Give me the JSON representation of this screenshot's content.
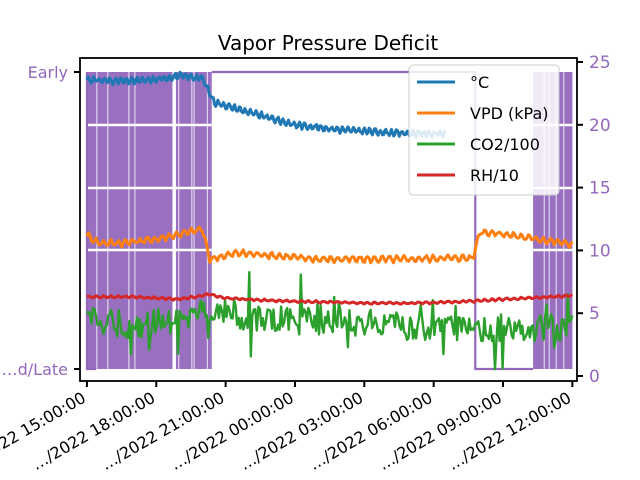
{
  "chart_data": {
    "type": "line",
    "title": "Vapor Pressure Deficit",
    "xlabel": "",
    "ylabel": "",
    "x_ticks": [
      "…2022 15:00:00",
      "…/2022 18:00:00",
      "…/2022 21:00:00",
      "…/2022 00:00:00",
      "…/2022 03:00:00",
      "…/2022 06:00:00",
      "…/2022 09:00:00",
      "…/2022 12:00:00"
    ],
    "x_range_hours": [
      14.7,
      12.2
    ],
    "y_right": {
      "ticks": [
        "0",
        "5",
        "10",
        "15",
        "20",
        "25"
      ],
      "ylim": [
        0,
        25
      ]
    },
    "y_left": {
      "ticks": [
        "Early",
        "…d/Late"
      ]
    },
    "legend": {
      "placement": "top-right",
      "entries": [
        "°C",
        "VPD (kPa)",
        "CO2/100",
        "RH/10"
      ]
    },
    "series": [
      {
        "name": "°C",
        "color": "#1f77b4",
        "x": [
          15.0,
          16.0,
          17.0,
          18.0,
          19.0,
          20.0,
          20.5,
          22.0,
          24.0,
          26.0,
          27.0,
          28.0,
          29.0,
          30.5
        ],
        "values": [
          23.6,
          23.5,
          23.5,
          23.6,
          23.9,
          23.7,
          21.8,
          21.0,
          20.0,
          19.6,
          19.5,
          19.4,
          19.3,
          19.3
        ]
      },
      {
        "name": "VPD (kPa)",
        "color": "#ff7f0e",
        "x": [
          15.0,
          15.5,
          16.5,
          18.0,
          19.5,
          20.0,
          20.3,
          21.5,
          23.0,
          25.0,
          27.0,
          29.0,
          30.5,
          31.7,
          32.0,
          33.0,
          34.5,
          36.0
        ],
        "values": [
          11.2,
          10.6,
          10.6,
          10.9,
          11.5,
          11.7,
          9.3,
          9.8,
          9.6,
          9.3,
          9.3,
          9.3,
          9.4,
          9.4,
          11.5,
          11.3,
          10.9,
          10.5
        ]
      },
      {
        "name": "CO2/100",
        "color": "#2ca02c",
        "x": [
          15.0,
          16.0,
          17.0,
          18.0,
          19.0,
          20.0,
          21.0,
          22.0,
          24.0,
          26.0,
          28.0,
          30.0,
          32.0,
          34.0,
          36.0
        ],
        "values": [
          4.5,
          4.3,
          4.0,
          4.3,
          4.4,
          5.5,
          5.2,
          4.6,
          4.4,
          4.2,
          4.0,
          3.9,
          3.8,
          3.8,
          3.9
        ]
      },
      {
        "name": "RH/10",
        "color": "#d62728",
        "x": [
          15.0,
          17.0,
          19.0,
          20.3,
          21.0,
          23.0,
          25.0,
          27.0,
          29.0,
          31.0,
          33.0,
          35.0,
          36.0
        ],
        "values": [
          6.3,
          6.3,
          6.1,
          6.5,
          6.2,
          6.0,
          5.9,
          5.8,
          5.8,
          5.9,
          6.1,
          6.3,
          6.4
        ]
      }
    ],
    "background_series": {
      "color": "#9467bd",
      "segments": [
        {
          "x0": 15.0,
          "x1": 15.4,
          "state": "dense"
        },
        {
          "x0": 15.4,
          "x1": 20.4,
          "state": "early"
        },
        {
          "x0": 20.4,
          "x1": 31.8,
          "state": "early"
        },
        {
          "x0": 31.8,
          "x1": 36.0,
          "state": "late"
        }
      ],
      "dense_ranges": [
        [
          15.0,
          18.7
        ],
        [
          18.85,
          20.4
        ],
        [
          34.3,
          36.0
        ]
      ]
    }
  }
}
